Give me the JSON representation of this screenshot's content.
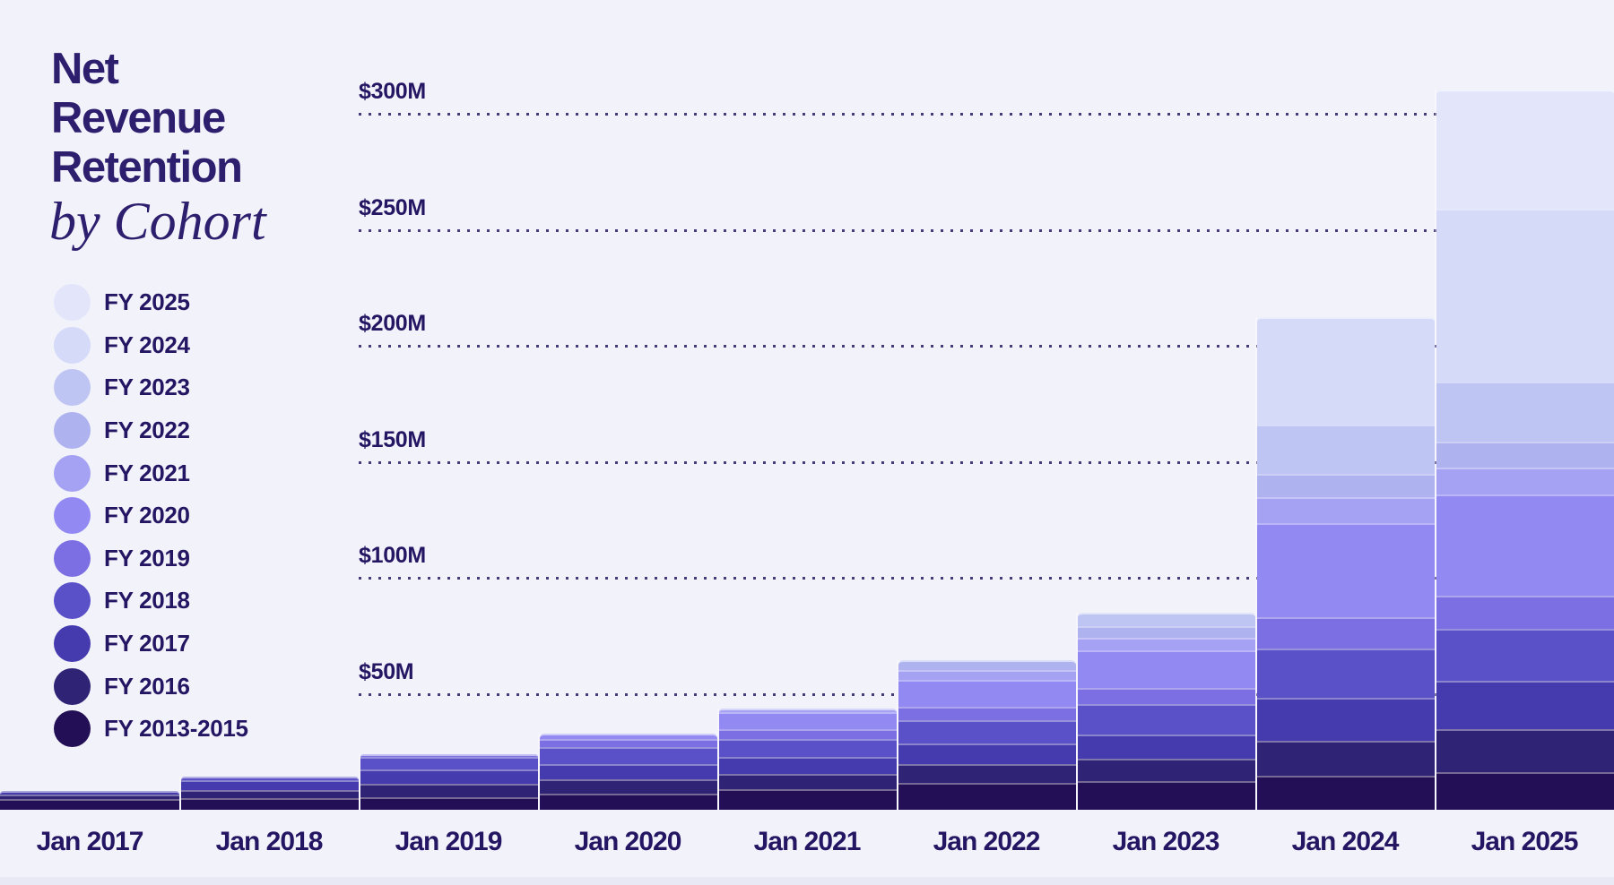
{
  "title": {
    "lines": [
      "Net",
      "Revenue",
      "Retention"
    ],
    "subtitle": "by Cohort"
  },
  "colors": {
    "background": "#f2f2fb",
    "title_text": "#2d1e6e",
    "axis_text": "#251663",
    "grid_dots": "#2a1b66",
    "footer_strip": "#e9e8f5"
  },
  "legend": {
    "items": [
      {
        "label": "FY 2025",
        "color": "#e3e6fb"
      },
      {
        "label": "FY 2024",
        "color": "#d5daf9"
      },
      {
        "label": "FY 2023",
        "color": "#bfc5f3"
      },
      {
        "label": "FY 2022",
        "color": "#aeb3f0"
      },
      {
        "label": "FY 2021",
        "color": "#a5a2f3"
      },
      {
        "label": "FY 2020",
        "color": "#9289f2"
      },
      {
        "label": "FY 2019",
        "color": "#7b6fe3"
      },
      {
        "label": "FY 2018",
        "color": "#5a50c8"
      },
      {
        "label": "FY 2017",
        "color": "#453aae"
      },
      {
        "label": "FY 2016",
        "color": "#2f2376"
      },
      {
        "label": "FY 2013-2015",
        "color": "#230f55"
      }
    ]
  },
  "chart_data": {
    "type": "area",
    "variant": "stacked-step-cohort",
    "title": "Net Revenue Retention by Cohort",
    "unit": "$M",
    "x": [
      "Jan 2017",
      "Jan 2018",
      "Jan 2019",
      "Jan 2020",
      "Jan 2021",
      "Jan 2022",
      "Jan 2023",
      "Jan 2024",
      "Jan 2025"
    ],
    "y_ticks": [
      {
        "label": "$300M",
        "value": 300
      },
      {
        "label": "$250M",
        "value": 250
      },
      {
        "label": "$200M",
        "value": 200
      },
      {
        "label": "$150M",
        "value": 150
      },
      {
        "label": "$100M",
        "value": 100
      },
      {
        "label": "$50M",
        "value": 50
      }
    ],
    "ylim": [
      0,
      340
    ],
    "grid": "dotted-horizontal",
    "legend_position": "left",
    "totals_by_year": [
      8.0,
      14.2,
      23.8,
      32.7,
      43.7,
      64.4,
      84.8,
      212.4,
      310.4
    ],
    "series": [
      {
        "name": "FY 2013-2015",
        "color": "#230f55",
        "values": [
          4.6,
          4.9,
          5.5,
          7.0,
          8.8,
          11.5,
          12.5,
          14.8,
          16.0
        ]
      },
      {
        "name": "FY 2016",
        "color": "#2f2376",
        "values": [
          1.9,
          3.4,
          5.5,
          6.2,
          6.5,
          8.0,
          9.6,
          15.1,
          18.6
        ]
      },
      {
        "name": "FY 2017",
        "color": "#453aae",
        "values": [
          1.5,
          4.4,
          6.3,
          6.6,
          7.3,
          9.0,
          10.5,
          18.2,
          20.9
        ]
      },
      {
        "name": "FY 2018",
        "color": "#5a50c8",
        "values": [
          0,
          1.5,
          5.3,
          7.1,
          7.8,
          10.0,
          13.0,
          21.3,
          22.5
        ]
      },
      {
        "name": "FY 2019",
        "color": "#7b6fe3",
        "values": [
          0,
          0,
          1.2,
          3.6,
          4.3,
          6.0,
          7.0,
          13.6,
          14.3
        ]
      },
      {
        "name": "FY 2020",
        "color": "#9289f2",
        "values": [
          0,
          0,
          0,
          2.2,
          7.2,
          11.5,
          16.2,
          40.7,
          43.5
        ]
      },
      {
        "name": "FY 2021",
        "color": "#a5a2f3",
        "values": [
          0,
          0,
          0,
          0,
          1.8,
          4.4,
          5.5,
          11.0,
          11.6
        ]
      },
      {
        "name": "FY 2022",
        "color": "#aeb3f0",
        "values": [
          0,
          0,
          0,
          0,
          0,
          4.0,
          4.7,
          10.1,
          11.3
        ]
      },
      {
        "name": "FY 2023",
        "color": "#bfc5f3",
        "values": [
          0,
          0,
          0,
          0,
          0,
          0,
          5.8,
          21.2,
          26.0
        ]
      },
      {
        "name": "FY 2024",
        "color": "#d5daf9",
        "values": [
          0,
          0,
          0,
          0,
          0,
          0,
          0,
          46.4,
          74.5
        ]
      },
      {
        "name": "FY 2025",
        "color": "#e3e6fb",
        "values": [
          0,
          0,
          0,
          0,
          0,
          0,
          0,
          0,
          51.2
        ]
      }
    ]
  }
}
